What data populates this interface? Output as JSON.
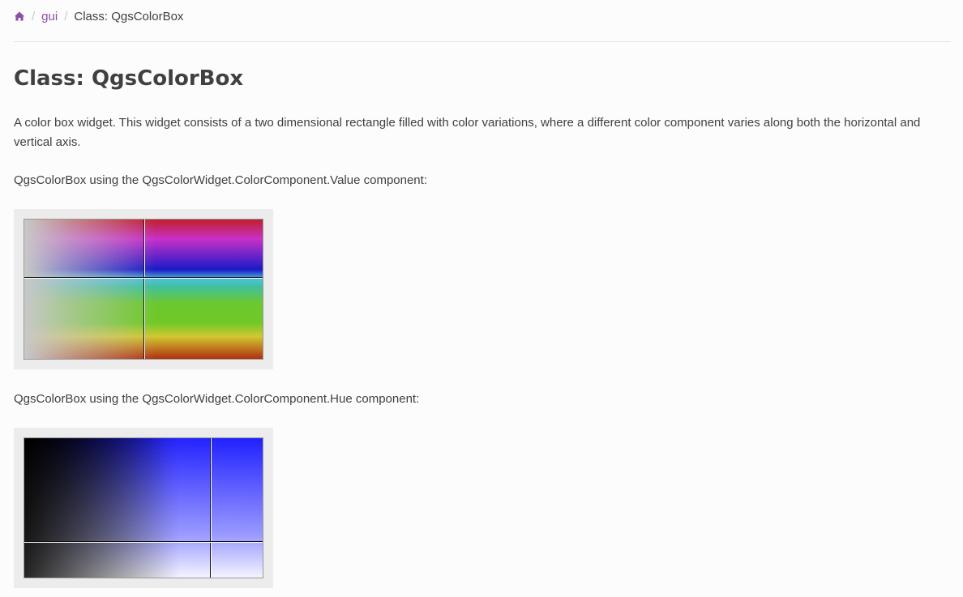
{
  "breadcrumb": {
    "home_icon": "home-icon",
    "separator": "/",
    "link": "gui",
    "current": "Class: QgsColorBox"
  },
  "page": {
    "title": "Class: QgsColorBox",
    "description": "A color box widget. This widget consists of a two dimensional rectangle filled with color variations, where a different color component varies along both the horizontal and vertical axis.",
    "caption_value": "QgsColorBox using the QgsColorWidget.ColorComponent.Value component:",
    "caption_hue": "QgsColorBox using the QgsColorWidget.ColorComponent.Hue component:"
  },
  "colors": {
    "link": "#8b4fa8",
    "text": "#404040",
    "frame": "#ececec"
  }
}
